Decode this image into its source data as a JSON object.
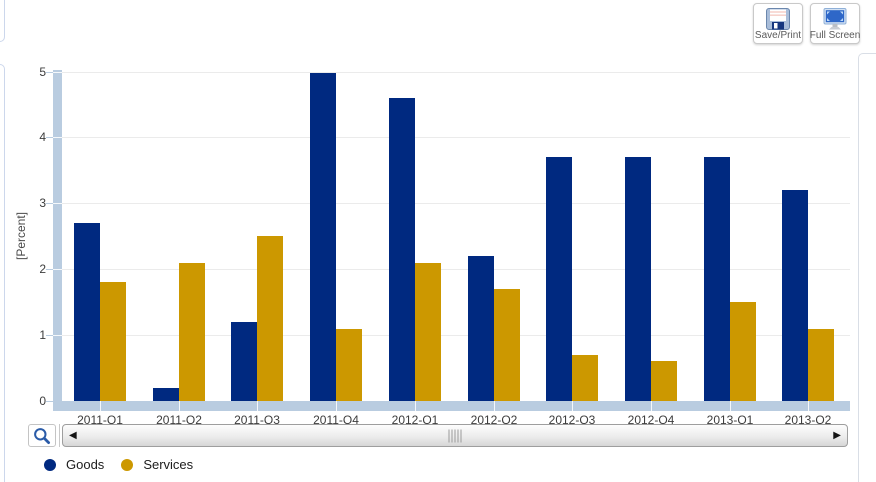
{
  "toolbar": {
    "save_print_label": "Save/Print",
    "full_screen_label": "Full Screen",
    "icons": {
      "save_print": "floppy-disk",
      "full_screen": "monitor"
    }
  },
  "chart_data": {
    "type": "bar",
    "title": "",
    "ylabel": "[Percent]",
    "categories": [
      "2011-Q1",
      "2011-Q2",
      "2011-Q3",
      "2011-Q4",
      "2012-Q1",
      "2012-Q2",
      "2012-Q3",
      "2012-Q4",
      "2013-Q1",
      "2013-Q2"
    ],
    "series": [
      {
        "name": "Goods",
        "color": "#002980",
        "values": [
          2.7,
          0.2,
          1.2,
          4.98,
          4.6,
          2.2,
          3.7,
          3.7,
          3.7,
          3.2
        ]
      },
      {
        "name": "Services",
        "color": "#CC9800",
        "values": [
          1.8,
          2.1,
          2.5,
          1.1,
          2.1,
          1.7,
          0.7,
          0.6,
          1.5,
          1.1
        ]
      }
    ],
    "ylim": [
      0,
      5
    ],
    "y_ticks": [
      0,
      1,
      2,
      3,
      4,
      5
    ],
    "grid": true,
    "axis_band_color": "#B9CCE0",
    "legend_position": "bottom-left"
  },
  "scrollbar": {
    "zoom_out_icon": "magnifier",
    "left_arrow": "◀",
    "right_arrow": "▶"
  }
}
